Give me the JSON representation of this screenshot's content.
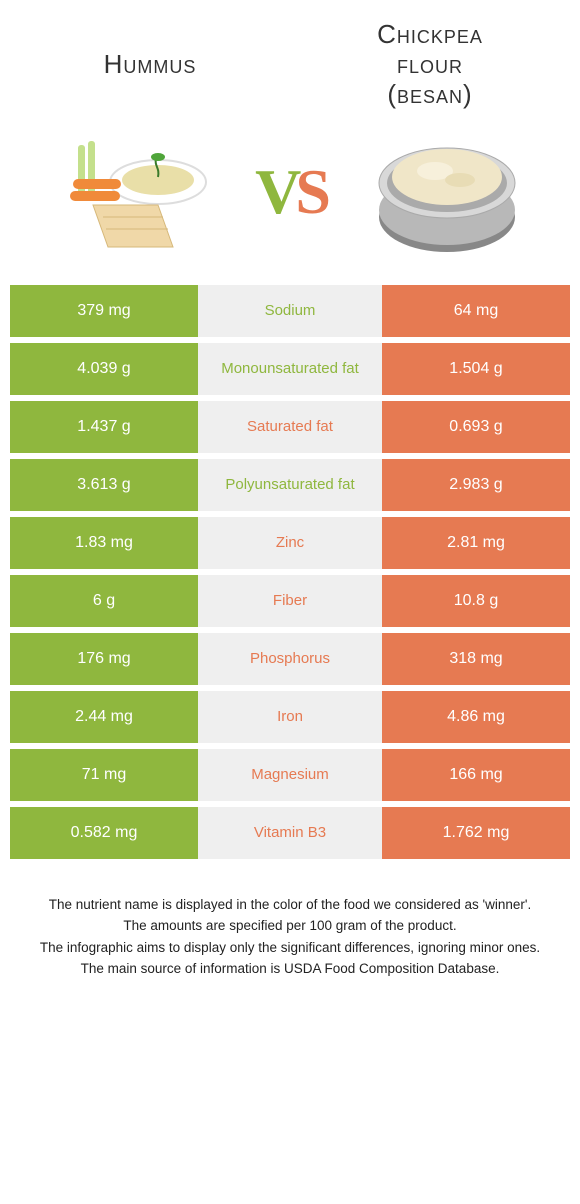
{
  "colors": {
    "left": "#8fb73e",
    "right": "#e67a52",
    "mid_bg": "#efefef"
  },
  "header": {
    "left_title": "Hummus",
    "right_title_line1": "Chickpea",
    "right_title_line2": "flour",
    "right_title_line3": "(besan)"
  },
  "vs": {
    "v": "V",
    "s": "S"
  },
  "rows": [
    {
      "left": "379 mg",
      "label": "Sodium",
      "right": "64 mg",
      "winner": "left"
    },
    {
      "left": "4.039 g",
      "label": "Monounsaturated fat",
      "right": "1.504 g",
      "winner": "left"
    },
    {
      "left": "1.437 g",
      "label": "Saturated fat",
      "right": "0.693 g",
      "winner": "right"
    },
    {
      "left": "3.613 g",
      "label": "Polyunsaturated fat",
      "right": "2.983 g",
      "winner": "left"
    },
    {
      "left": "1.83 mg",
      "label": "Zinc",
      "right": "2.81 mg",
      "winner": "right"
    },
    {
      "left": "6 g",
      "label": "Fiber",
      "right": "10.8 g",
      "winner": "right"
    },
    {
      "left": "176 mg",
      "label": "Phosphorus",
      "right": "318 mg",
      "winner": "right"
    },
    {
      "left": "2.44 mg",
      "label": "Iron",
      "right": "4.86 mg",
      "winner": "right"
    },
    {
      "left": "71 mg",
      "label": "Magnesium",
      "right": "166 mg",
      "winner": "right"
    },
    {
      "left": "0.582 mg",
      "label": "Vitamin B3",
      "right": "1.762 mg",
      "winner": "right"
    }
  ],
  "footnotes": [
    "The nutrient name is displayed in the color of the food we considered as 'winner'.",
    "The amounts are specified per 100 gram of the product.",
    "The infographic aims to display only the significant differences, ignoring minor ones.",
    "The main source of information is USDA Food Composition Database."
  ]
}
